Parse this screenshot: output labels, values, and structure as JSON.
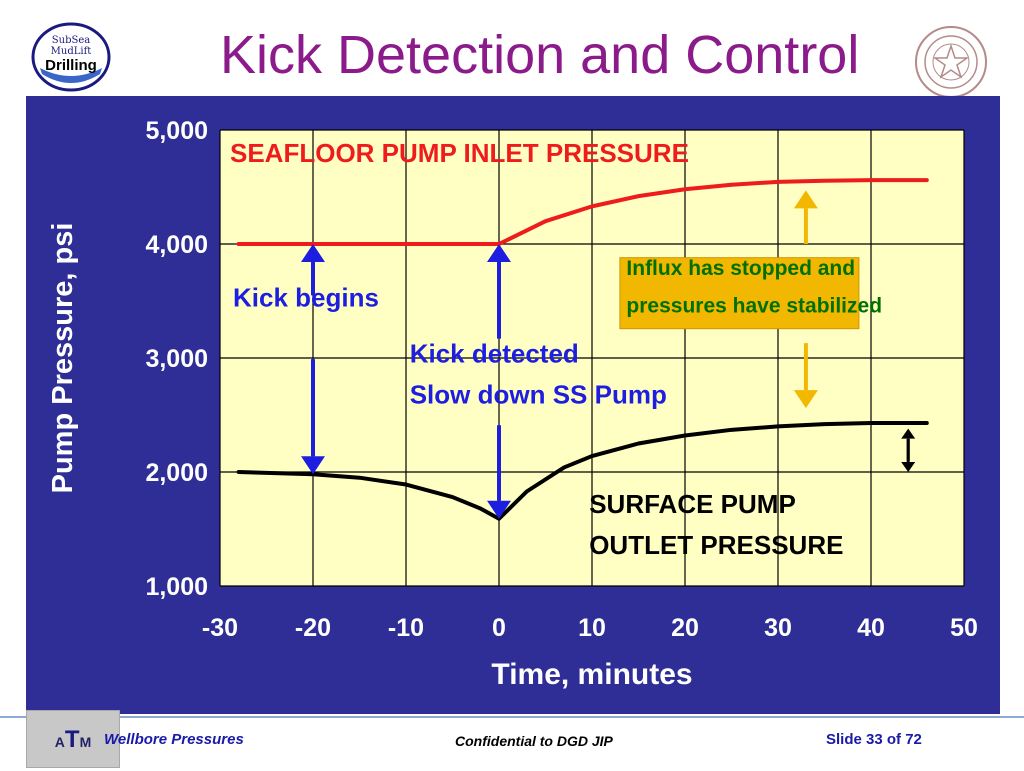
{
  "slide": {
    "title": "Kick Detection and Control",
    "left_logo": {
      "icon": "subsea-mudlift-drilling-logo",
      "lines": [
        "SubSea",
        "MudLift",
        "Drilling"
      ]
    },
    "right_logo": {
      "icon": "texas-am-university-seal"
    }
  },
  "chart_data": {
    "type": "line",
    "title": "",
    "xlabel": "Time,  minutes",
    "ylabel": "Pump Pressure,  psi",
    "xlim": [
      -30,
      50
    ],
    "ylim": [
      1000,
      5000
    ],
    "x_ticks": [
      -30,
      -20,
      -10,
      0,
      10,
      20,
      30,
      40,
      50
    ],
    "y_ticks": [
      1000,
      2000,
      3000,
      4000,
      5000
    ],
    "x_tick_labels": [
      "-30",
      "-20",
      "-10",
      "0",
      "10",
      "20",
      "30",
      "40",
      "50"
    ],
    "y_tick_labels": [
      "1,000",
      "2,000",
      "3,000",
      "4,000",
      "5,000"
    ],
    "grid": true,
    "colors": {
      "panel": "#2e2e96",
      "plot_bg": "#ffffc4",
      "inlet": "#ee1c1c",
      "outlet": "#000000",
      "annotation_blue": "#1e1ee0",
      "annotation_gold": "#f2b700"
    },
    "series": [
      {
        "name": "SEAFLOOR PUMP INLET PRESSURE",
        "color": "#ee1c1c",
        "x": [
          -28,
          -20,
          -10,
          0,
          5,
          10,
          15,
          20,
          25,
          30,
          35,
          40,
          46
        ],
        "y": [
          4000,
          4000,
          4000,
          4000,
          4200,
          4330,
          4420,
          4480,
          4520,
          4545,
          4555,
          4560,
          4560
        ]
      },
      {
        "name": "SURFACE PUMP OUTLET PRESSURE",
        "color": "#000000",
        "x": [
          -28,
          -20,
          -15,
          -10,
          -5,
          -2,
          0,
          3,
          7,
          10,
          15,
          20,
          25,
          30,
          35,
          40,
          46
        ],
        "y": [
          2000,
          1980,
          1950,
          1890,
          1780,
          1680,
          1590,
          1830,
          2040,
          2140,
          2250,
          2320,
          2370,
          2400,
          2420,
          2430,
          2430
        ]
      }
    ],
    "annotations": [
      {
        "text": "Kick begins",
        "x": -28.6,
        "y": 3450,
        "color": "#1e1ee0"
      },
      {
        "text": "Kick detected",
        "x": -9.6,
        "y": 2960,
        "color": "#1e1ee0"
      },
      {
        "text": "Slow down SS Pump",
        "x": -9.6,
        "y": 2600,
        "color": "#1e1ee0"
      },
      {
        "text": "SURFACE PUMP",
        "x": 9.7,
        "y": 1640,
        "color": "#000000"
      },
      {
        "text": "OUTLET PRESSURE",
        "x": 9.7,
        "y": 1280,
        "color": "#000000"
      },
      {
        "text": "Influx has stopped and",
        "x": 13.7,
        "y": 3730,
        "color": "#007000",
        "boxed": true
      },
      {
        "text": "pressures have stabilized",
        "x": 13.7,
        "y": 3400,
        "color": "#007000",
        "boxed": true
      }
    ],
    "arrows": [
      {
        "x": -20,
        "y_from": 3550,
        "y_to": 4000,
        "color": "#1e1ee0"
      },
      {
        "x": -20,
        "y_from": 2990,
        "y_to": 1980,
        "color": "#1e1ee0"
      },
      {
        "x": 0,
        "y_from": 3170,
        "y_to": 4000,
        "color": "#1e1ee0"
      },
      {
        "x": 0,
        "y_from": 2410,
        "y_to": 1590,
        "color": "#1e1ee0"
      },
      {
        "x": 33,
        "y_from": 4000,
        "y_to": 4470,
        "color": "#f2b700"
      },
      {
        "x": 33,
        "y_from": 3130,
        "y_to": 2560,
        "color": "#f2b700"
      },
      {
        "x": 44,
        "y_from": 2100,
        "y_to": 2380,
        "color": "#000000"
      },
      {
        "x": 44,
        "y_from": 2290,
        "y_to": 2000,
        "color": "#000000"
      }
    ]
  },
  "footer": {
    "badge": {
      "a": "A",
      "t": "T",
      "m": "M"
    },
    "left": "Wellbore Pressures",
    "center": "Confidential to DGD JIP",
    "right": "Slide 33 of 72"
  }
}
